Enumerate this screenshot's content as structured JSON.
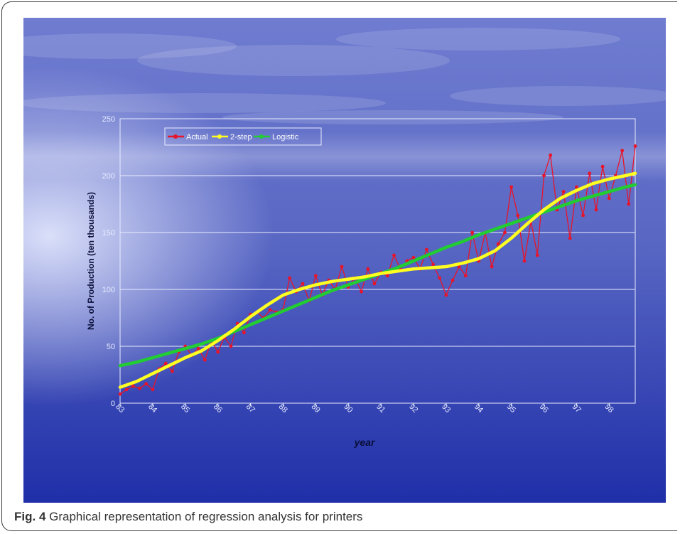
{
  "caption": {
    "label": "Fig. 4",
    "text": "Graphical representation of regression analysis for printers"
  },
  "colors": {
    "actual": "#e8142a",
    "two_step": "#ffff22",
    "logistic": "#22cc33",
    "background_top": "#6f7cd0",
    "background_bottom": "#1f2fa8",
    "grid": "#e8ecff"
  },
  "chart_data": {
    "type": "line",
    "xlabel": "year",
    "ylabel": "No. of Production (ten thousands)",
    "x_ticks": [
      "83",
      "84",
      "85",
      "86",
      "87",
      "88",
      "89",
      "90",
      "91",
      "92",
      "93",
      "94",
      "95",
      "96",
      "97",
      "98"
    ],
    "ylim": [
      0,
      250
    ],
    "y_ticks": [
      0,
      50,
      100,
      150,
      200,
      250
    ],
    "xlim": [
      83,
      98.8
    ],
    "grid": "horizontal",
    "legend": "top-left",
    "series": [
      {
        "name": "Actual",
        "x": [
          83.0,
          83.2,
          83.4,
          83.6,
          83.8,
          84.0,
          84.2,
          84.4,
          84.6,
          84.8,
          85.0,
          85.2,
          85.4,
          85.6,
          85.8,
          86.0,
          86.2,
          86.4,
          86.6,
          86.8,
          87.0,
          87.2,
          87.4,
          87.6,
          87.8,
          88.0,
          88.2,
          88.4,
          88.6,
          88.8,
          89.0,
          89.2,
          89.4,
          89.6,
          89.8,
          90.0,
          90.2,
          90.4,
          90.6,
          90.8,
          91.0,
          91.2,
          91.4,
          91.6,
          91.8,
          92.0,
          92.2,
          92.4,
          92.6,
          92.8,
          93.0,
          93.2,
          93.4,
          93.6,
          93.8,
          94.0,
          94.2,
          94.4,
          94.6,
          94.8,
          95.0,
          95.2,
          95.4,
          95.6,
          95.8,
          96.0,
          96.2,
          96.4,
          96.6,
          96.8,
          97.0,
          97.2,
          97.4,
          97.6,
          97.8,
          98.0,
          98.2,
          98.4,
          98.6,
          98.8
        ],
        "values": [
          8,
          12,
          15,
          13,
          17,
          12,
          30,
          35,
          28,
          45,
          50,
          42,
          48,
          38,
          55,
          45,
          58,
          50,
          70,
          62,
          78,
          80,
          75,
          82,
          80,
          82,
          110,
          98,
          105,
          90,
          112,
          95,
          108,
          100,
          120,
          102,
          110,
          98,
          118,
          105,
          115,
          112,
          130,
          118,
          125,
          128,
          118,
          135,
          122,
          110,
          95,
          108,
          120,
          112,
          150,
          125,
          150,
          120,
          140,
          150,
          190,
          165,
          125,
          160,
          130,
          200,
          218,
          170,
          186,
          145,
          190,
          165,
          202,
          170,
          208,
          180,
          200,
          222,
          175,
          226
        ]
      },
      {
        "name": "2-step",
        "x": [
          83.0,
          83.5,
          84.0,
          84.5,
          85.0,
          85.5,
          86.0,
          86.5,
          87.0,
          87.5,
          88.0,
          88.5,
          89.0,
          89.5,
          90.0,
          90.5,
          91.0,
          91.5,
          92.0,
          92.5,
          93.0,
          93.5,
          94.0,
          94.5,
          95.0,
          95.5,
          96.0,
          96.5,
          97.0,
          97.5,
          98.0,
          98.5,
          98.8
        ],
        "values": [
          14,
          19,
          26,
          33,
          40,
          46,
          55,
          65,
          76,
          86,
          95,
          100,
          104,
          107,
          109,
          111,
          114,
          116,
          118,
          119,
          120,
          123,
          127,
          134,
          145,
          158,
          170,
          180,
          187,
          193,
          197,
          200,
          202
        ]
      },
      {
        "name": "Logistic",
        "x": [
          83.0,
          83.5,
          84.0,
          84.5,
          85.0,
          85.5,
          86.0,
          86.5,
          87.0,
          87.5,
          88.0,
          88.5,
          89.0,
          89.5,
          90.0,
          90.5,
          91.0,
          91.5,
          92.0,
          92.5,
          93.0,
          93.5,
          94.0,
          94.5,
          95.0,
          95.5,
          96.0,
          96.5,
          97.0,
          97.5,
          98.0,
          98.5,
          98.8
        ],
        "values": [
          33,
          36,
          40,
          44,
          48,
          52,
          57,
          63,
          69,
          75,
          81,
          87,
          93,
          99,
          104,
          109,
          114,
          119,
          125,
          131,
          137,
          142,
          148,
          153,
          158,
          163,
          168,
          173,
          178,
          182,
          186,
          190,
          192
        ]
      }
    ]
  }
}
